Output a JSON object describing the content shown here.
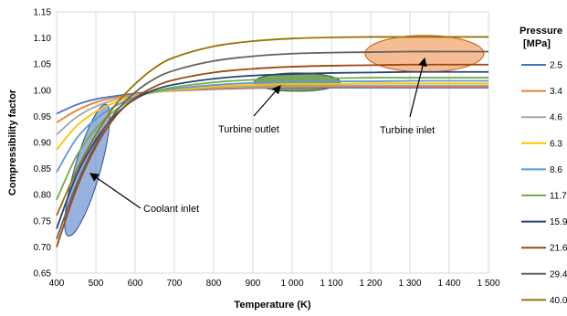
{
  "chart_data": {
    "type": "line",
    "title": "",
    "xlabel": "Temperature (K)",
    "ylabel": "Compressibility factor",
    "xlim": [
      400,
      1500
    ],
    "ylim": [
      0.65,
      1.15
    ],
    "x_ticks": [
      "400",
      "500",
      "600",
      "700",
      "800",
      "900",
      "1 000",
      "1 100",
      "1 200",
      "1 300",
      "1 400",
      "1 500"
    ],
    "y_ticks": [
      "0.65",
      "0.70",
      "0.75",
      "0.80",
      "0.85",
      "0.90",
      "0.95",
      "1.00",
      "1.05",
      "1.10",
      "1.15"
    ],
    "grid": "vertical",
    "legend": {
      "title_line1": "Pressure",
      "title_line2": "[MPa]",
      "placement": "right",
      "labels": [
        "2.5",
        "3.4",
        "4.6",
        "6.3",
        "8.6",
        "11.7",
        "15.9",
        "21.6",
        "29.4",
        "40.0"
      ]
    },
    "x": [
      400,
      450,
      500,
      550,
      600,
      650,
      700,
      800,
      900,
      1000,
      1100,
      1200,
      1300,
      1400,
      1500
    ],
    "series": [
      {
        "name": "2.5",
        "color": "#4472C4",
        "values": [
          0.955,
          0.972,
          0.983,
          0.989,
          0.994,
          0.997,
          0.999,
          1.002,
          1.004,
          1.005,
          1.005,
          1.005,
          1.005,
          1.005,
          1.005
        ]
      },
      {
        "name": "3.4",
        "color": "#ED7D31",
        "values": [
          0.938,
          0.961,
          0.977,
          0.986,
          0.992,
          0.996,
          0.999,
          1.003,
          1.005,
          1.006,
          1.007,
          1.007,
          1.007,
          1.007,
          1.007
        ]
      },
      {
        "name": "4.6",
        "color": "#A5A5A5",
        "values": [
          0.915,
          0.948,
          0.969,
          0.982,
          0.991,
          0.996,
          1.0,
          1.005,
          1.007,
          1.008,
          1.009,
          1.009,
          1.009,
          1.009,
          1.009
        ]
      },
      {
        "name": "6.3",
        "color": "#FFC000",
        "values": [
          0.886,
          0.931,
          0.959,
          0.977,
          0.989,
          0.996,
          1.001,
          1.007,
          1.01,
          1.012,
          1.012,
          1.013,
          1.013,
          1.013,
          1.013
        ]
      },
      {
        "name": "8.6",
        "color": "#5B9BD5",
        "values": [
          0.843,
          0.907,
          0.945,
          0.97,
          0.987,
          0.997,
          1.003,
          1.01,
          1.014,
          1.016,
          1.017,
          1.017,
          1.018,
          1.018,
          1.018
        ]
      },
      {
        "name": "11.7",
        "color": "#70AD47",
        "values": [
          0.79,
          0.873,
          0.927,
          0.962,
          0.985,
          0.998,
          1.006,
          1.015,
          1.02,
          1.022,
          1.023,
          1.024,
          1.024,
          1.024,
          1.024
        ]
      },
      {
        "name": "15.9",
        "color": "#264478",
        "values": [
          0.735,
          0.836,
          0.905,
          0.953,
          0.983,
          1.001,
          1.011,
          1.022,
          1.028,
          1.031,
          1.033,
          1.034,
          1.035,
          1.035,
          1.035
        ]
      },
      {
        "name": "21.6",
        "color": "#9E480E",
        "values": [
          0.7,
          0.81,
          0.892,
          0.95,
          0.985,
          1.007,
          1.02,
          1.034,
          1.041,
          1.045,
          1.047,
          1.048,
          1.049,
          1.049,
          1.049
        ]
      },
      {
        "name": "29.4",
        "color": "#636363",
        "values": [
          0.715,
          0.818,
          0.898,
          0.958,
          0.996,
          1.022,
          1.038,
          1.056,
          1.065,
          1.07,
          1.072,
          1.073,
          1.074,
          1.074,
          1.074
        ]
      },
      {
        "name": "40.0",
        "color": "#997300",
        "values": [
          0.76,
          0.845,
          0.915,
          0.972,
          1.012,
          1.043,
          1.063,
          1.084,
          1.094,
          1.099,
          1.101,
          1.102,
          1.102,
          1.102,
          1.102
        ]
      }
    ],
    "annotations": [
      {
        "text": "Coolant inlet",
        "color": "#4472C4"
      },
      {
        "text": "Turbine outlet",
        "color": "#548235"
      },
      {
        "text": "Turbine inlet",
        "color": "#ED7D31"
      }
    ]
  }
}
